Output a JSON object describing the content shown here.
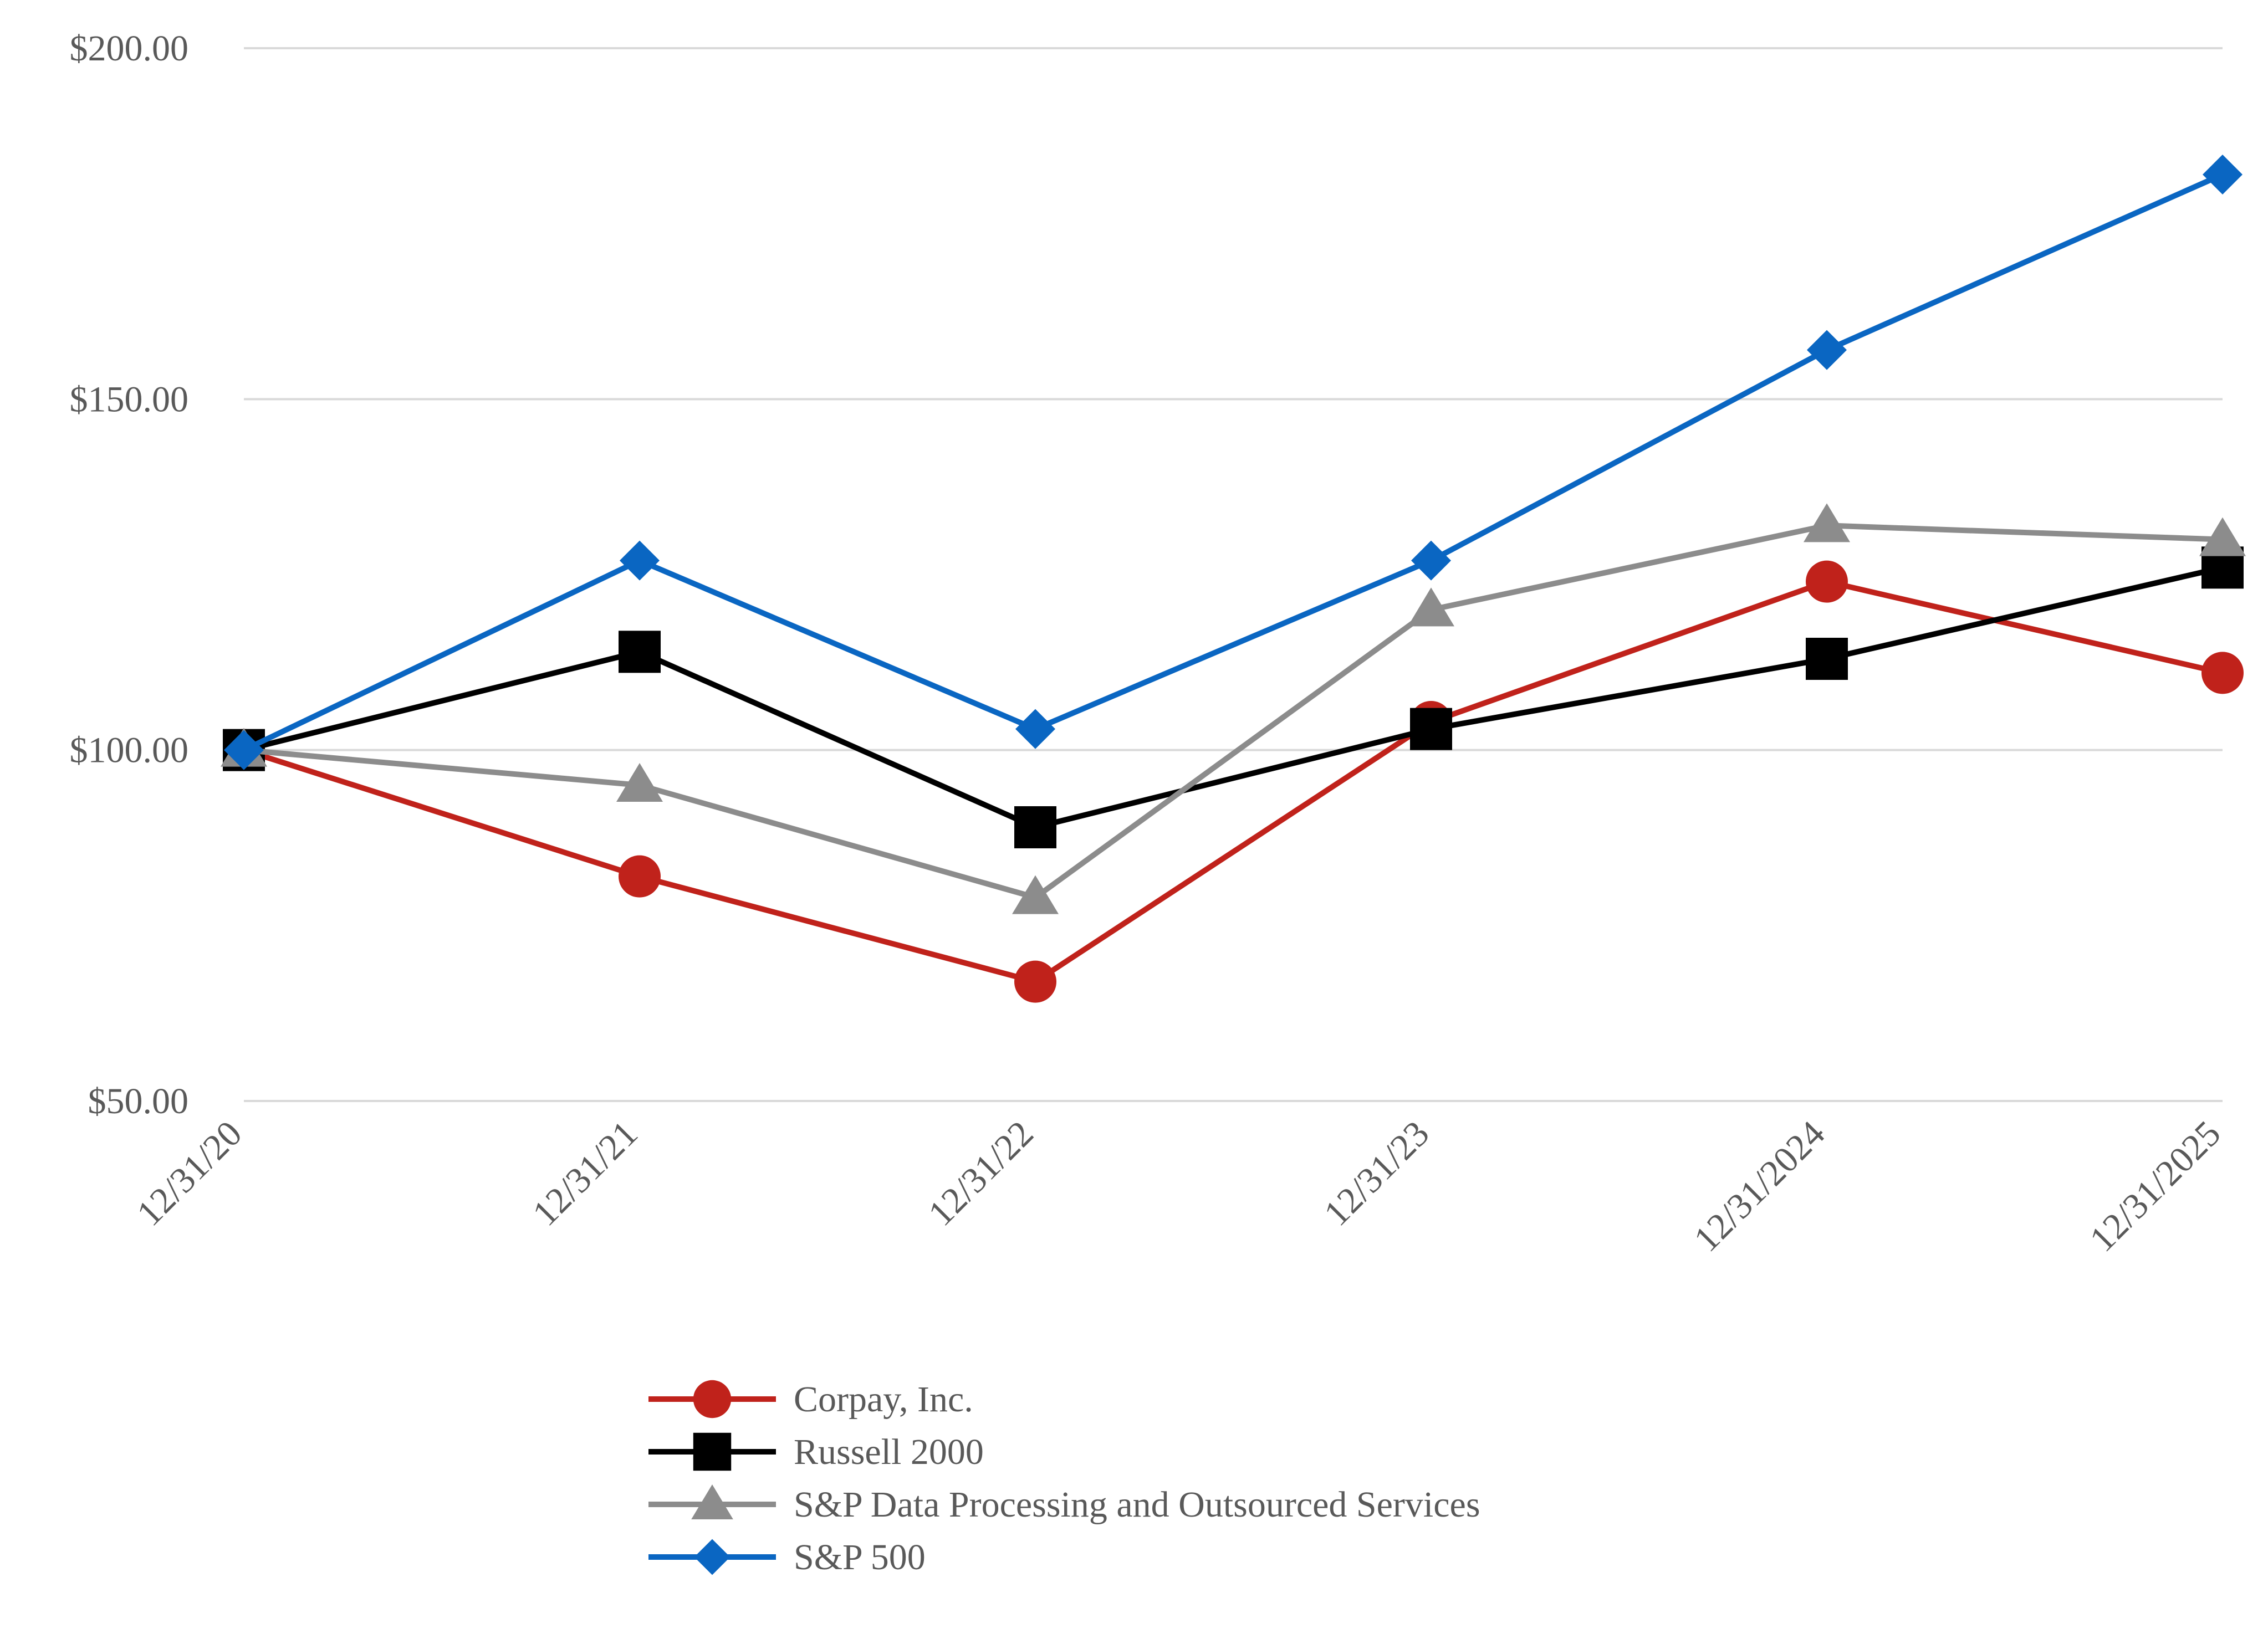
{
  "chart_data": {
    "type": "line",
    "title": "",
    "xlabel": "",
    "ylabel": "",
    "categories": [
      "12/31/20",
      "12/31/21",
      "12/31/22",
      "12/31/23",
      "12/31/2024",
      "12/31/2025"
    ],
    "ylim": [
      50,
      200
    ],
    "y_ticks": [
      {
        "value": 50,
        "label": "$50.00"
      },
      {
        "value": 100,
        "label": "$100.00"
      },
      {
        "value": 150,
        "label": "$150.00"
      },
      {
        "value": 200,
        "label": "$200.00"
      }
    ],
    "grid": true,
    "legend_position": "bottom",
    "series": [
      {
        "name": "Corpay, Inc.",
        "color": "#c0221b",
        "marker": "circle",
        "values": [
          100,
          82,
          67,
          104,
          124,
          111
        ]
      },
      {
        "name": "Russell 2000",
        "color": "#000000",
        "marker": "square",
        "values": [
          100,
          114,
          89,
          103,
          113,
          126
        ]
      },
      {
        "name": "S&P Data Processing and Outsourced Services",
        "color": "#8c8c8c",
        "marker": "triangle",
        "values": [
          100,
          95,
          79,
          120,
          132,
          130
        ]
      },
      {
        "name": "S&P 500",
        "color": "#0a66c2",
        "marker": "diamond",
        "values": [
          100,
          127,
          103,
          127,
          157,
          182
        ]
      }
    ]
  }
}
